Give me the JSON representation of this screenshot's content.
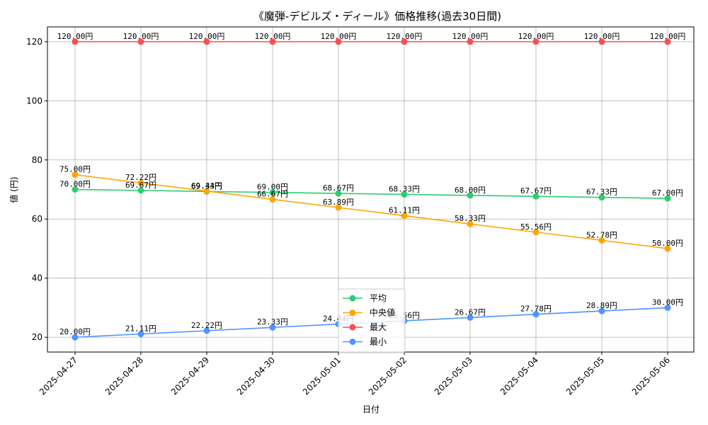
{
  "chart_data": {
    "type": "line",
    "title": "《魔弾-デビルズ・ディール》価格推移(過去30日間)",
    "xlabel": "日付",
    "ylabel": "値 (円)",
    "categories": [
      "2025-04-27",
      "2025-04-28",
      "2025-04-29",
      "2025-04-30",
      "2025-05-01",
      "2025-05-02",
      "2025-05-03",
      "2025-05-04",
      "2025-05-05",
      "2025-05-06"
    ],
    "ylim": [
      15,
      125
    ],
    "yticks": [
      20,
      40,
      60,
      80,
      100,
      120
    ],
    "grid": true,
    "legend_position": "bottom-center",
    "value_suffix": "円",
    "series": [
      {
        "name": "平均",
        "color": "#2ecc71",
        "values": [
          70.0,
          69.67,
          69.33,
          69.0,
          68.67,
          68.33,
          68.0,
          67.67,
          67.33,
          67.0
        ]
      },
      {
        "name": "中央値",
        "color": "#ffa500",
        "values": [
          75.0,
          72.22,
          69.44,
          66.67,
          63.89,
          61.11,
          58.33,
          55.56,
          52.78,
          50.0
        ]
      },
      {
        "name": "最大",
        "color": "#ff4d4d",
        "values": [
          120.0,
          120.0,
          120.0,
          120.0,
          120.0,
          120.0,
          120.0,
          120.0,
          120.0,
          120.0
        ]
      },
      {
        "name": "最小",
        "color": "#4d94ff",
        "values": [
          20.0,
          21.11,
          22.22,
          23.33,
          24.44,
          25.56,
          26.67,
          27.78,
          28.89,
          30.0
        ]
      }
    ]
  }
}
